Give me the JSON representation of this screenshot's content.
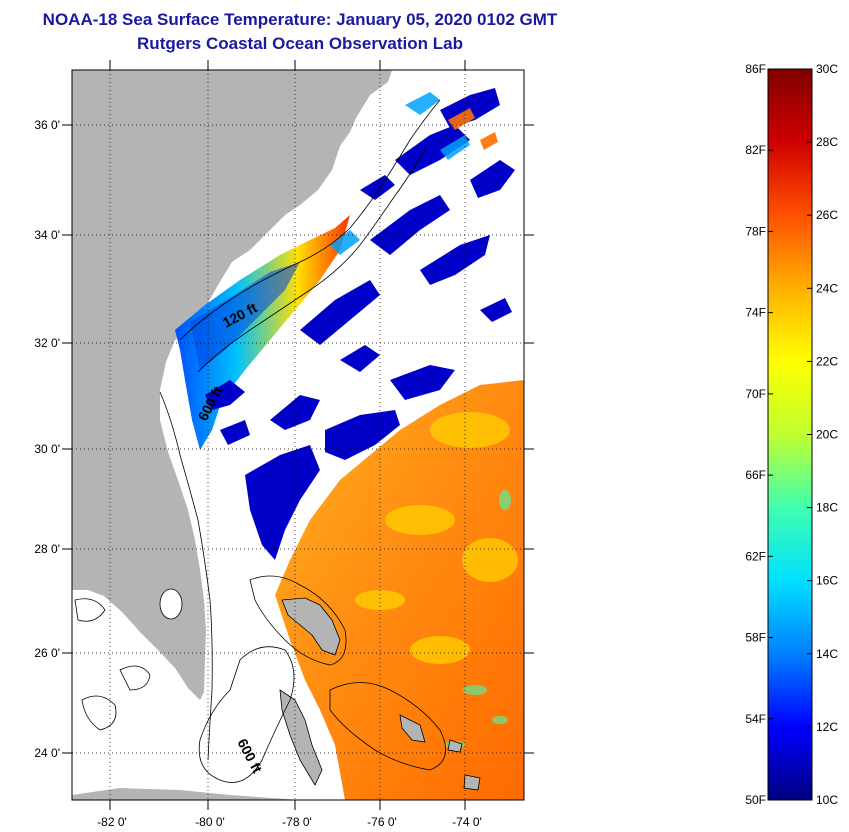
{
  "header": {
    "title": "NOAA-18 Sea Surface Temperature:  January 05, 2020 0102 GMT",
    "subtitle": "Rutgers Coastal Ocean Observation Lab"
  },
  "map": {
    "lat_labels": [
      "36 0'",
      "34 0'",
      "32 0'",
      "30 0'",
      "28 0'",
      "26 0'",
      "24 0'"
    ],
    "lon_labels": [
      "-82 0'",
      "-80 0'",
      "-78 0'",
      "-76 0'",
      "-74 0'"
    ],
    "contour_labels": [
      "120 ft",
      "600 ft",
      "600 ft"
    ],
    "colors": {
      "land": "#b4b4b4",
      "nodata": "#ffffff",
      "coast": "#000000"
    }
  },
  "colorbar": {
    "f_labels": [
      "86F",
      "82F",
      "78F",
      "74F",
      "70F",
      "66F",
      "62F",
      "58F",
      "54F",
      "50F"
    ],
    "c_labels": [
      "30C",
      "28C",
      "26C",
      "24C",
      "22C",
      "20C",
      "18C",
      "16C",
      "14C",
      "12C",
      "10C"
    ],
    "palette": [
      "#000080",
      "#0000ff",
      "#0080ff",
      "#00e0ff",
      "#40ffb0",
      "#c0ff30",
      "#ffff00",
      "#ffb000",
      "#ff5000",
      "#d00000",
      "#800000"
    ]
  }
}
